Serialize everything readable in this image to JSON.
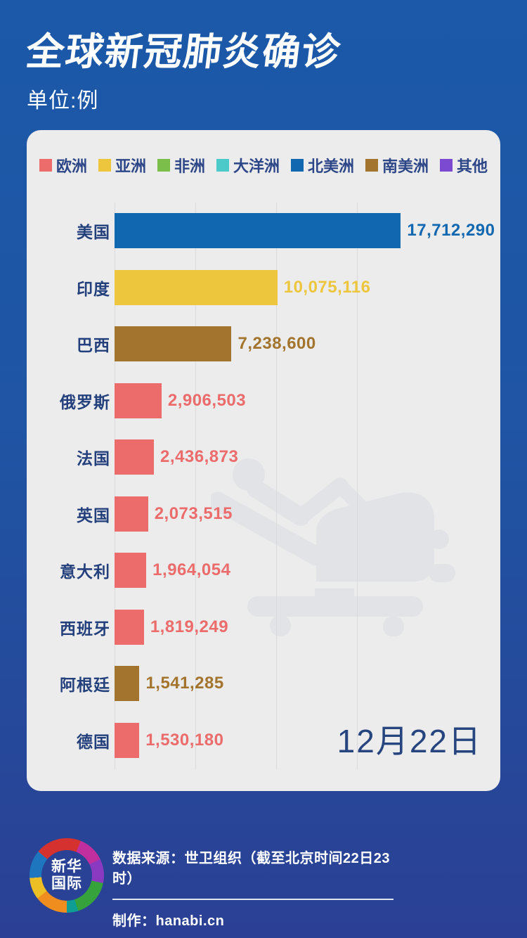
{
  "header": {
    "title": "全球新冠肺炎确诊",
    "subtitle": "单位:例"
  },
  "legend": [
    {
      "label": "欧洲",
      "color": "#ec6b6b"
    },
    {
      "label": "亚洲",
      "color": "#edc63d"
    },
    {
      "label": "非洲",
      "color": "#7cbe4a"
    },
    {
      "label": "大洋洲",
      "color": "#4cc9c9"
    },
    {
      "label": "北美洲",
      "color": "#1268b0"
    },
    {
      "label": "南美洲",
      "color": "#a3742d"
    },
    {
      "label": "其他",
      "color": "#7c4ad0"
    }
  ],
  "chart_data": {
    "type": "bar",
    "orientation": "horizontal",
    "title": "全球新冠肺炎确诊",
    "unit": "例",
    "date_label": "12月22日",
    "legend_position": "top",
    "grid": "vertical",
    "axis": {
      "min": 0,
      "gridline_values": [
        0,
        5000000,
        10000000,
        15000000
      ]
    },
    "categories": [
      "美国",
      "印度",
      "巴西",
      "俄罗斯",
      "法国",
      "英国",
      "意大利",
      "西班牙",
      "阿根廷",
      "德国"
    ],
    "series": [
      {
        "name": "确诊",
        "values": [
          17712290,
          10075116,
          7238600,
          2906503,
          2436873,
          2073515,
          1964054,
          1819249,
          1541285,
          1530180
        ]
      }
    ],
    "value_labels": [
      "17,712,290",
      "10,075,116",
      "7,238,600",
      "2,906,503",
      "2,436,873",
      "2,073,515",
      "1,964,054",
      "1,819,249",
      "1,541,285",
      "1,530,180"
    ],
    "bar_regions": [
      "北美洲",
      "亚洲",
      "南美洲",
      "欧洲",
      "欧洲",
      "欧洲",
      "欧洲",
      "欧洲",
      "南美洲",
      "欧洲"
    ]
  },
  "footer": {
    "logo_text_line1": "新华",
    "logo_text_line2": "国际",
    "source": "数据来源：世卫组织（截至北京时间22日23时）",
    "credit": "制作：hanabi.cn"
  }
}
